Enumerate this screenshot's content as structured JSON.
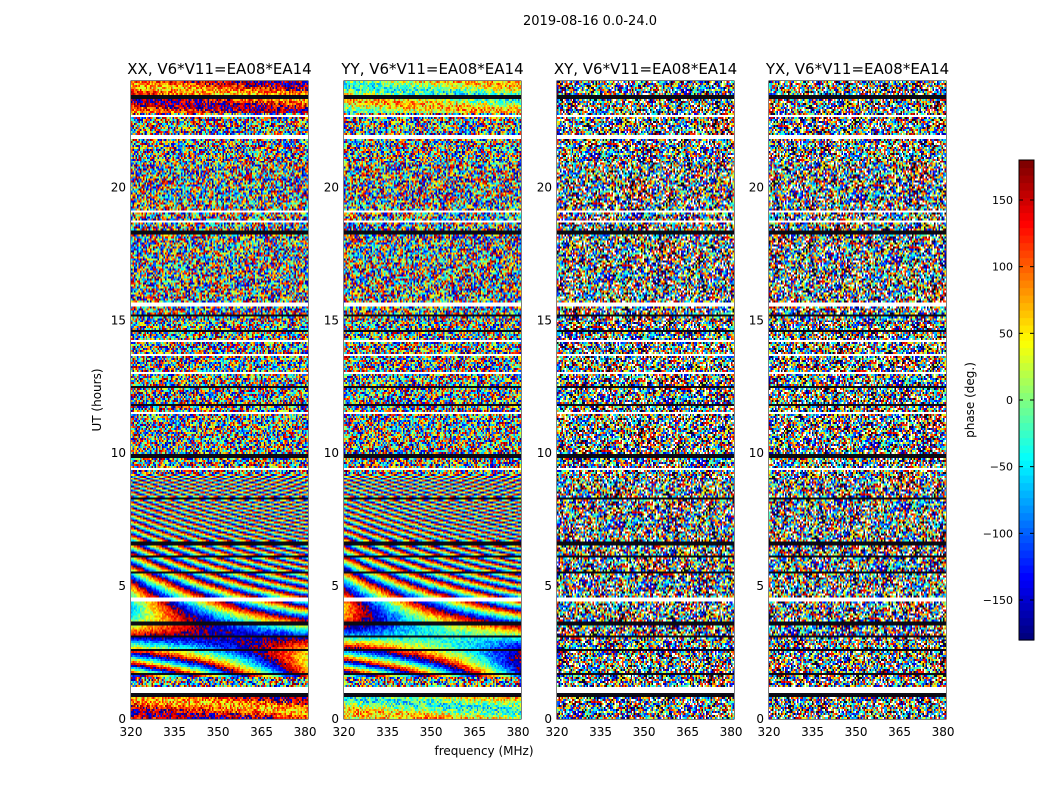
{
  "figure": {
    "suptitle": "2019-08-16 0.0-24.0"
  },
  "chart_data": [
    {
      "type": "heatmap",
      "title": "XX, V6*V11=EA08*EA14",
      "xlabel": "",
      "ylabel": "UT (hours)",
      "xlim": [
        320,
        381
      ],
      "ylim": [
        0,
        24
      ],
      "xticks": [
        "320",
        "335",
        "350",
        "365",
        "380"
      ],
      "yticks": [
        "0",
        "5",
        "10",
        "15",
        "20"
      ],
      "pattern": "fringe"
    },
    {
      "type": "heatmap",
      "title": "YY, V6*V11=EA08*EA14",
      "xlabel": "frequency (MHz)",
      "ylabel": "",
      "xlim": [
        320,
        381
      ],
      "ylim": [
        0,
        24
      ],
      "xticks": [
        "320",
        "335",
        "350",
        "365",
        "380"
      ],
      "yticks": [
        "0",
        "5",
        "10",
        "15",
        "20"
      ],
      "pattern": "fringe"
    },
    {
      "type": "heatmap",
      "title": "XY, V6*V11=EA08*EA14",
      "xlabel": "",
      "ylabel": "",
      "xlim": [
        320,
        381
      ],
      "ylim": [
        0,
        24
      ],
      "xticks": [
        "320",
        "335",
        "350",
        "365",
        "380"
      ],
      "yticks": [
        "0",
        "5",
        "10",
        "15",
        "20"
      ],
      "pattern": "noise"
    },
    {
      "type": "heatmap",
      "title": "YX, V6*V11=EA08*EA14",
      "xlabel": "",
      "ylabel": "",
      "xlim": [
        320,
        381
      ],
      "ylim": [
        0,
        24
      ],
      "xticks": [
        "320",
        "335",
        "350",
        "365",
        "380"
      ],
      "yticks": [
        "0",
        "5",
        "10",
        "15",
        "20"
      ],
      "pattern": "noise"
    }
  ],
  "colorbar": {
    "label": "phase (deg.)",
    "vmin": -180,
    "vmax": 180,
    "ticks": [
      "150",
      "100",
      "50",
      "0",
      "−50",
      "−100",
      "−150"
    ],
    "tick_values": [
      150,
      100,
      50,
      0,
      -50,
      -100,
      -150
    ],
    "colormap": "jet"
  }
}
